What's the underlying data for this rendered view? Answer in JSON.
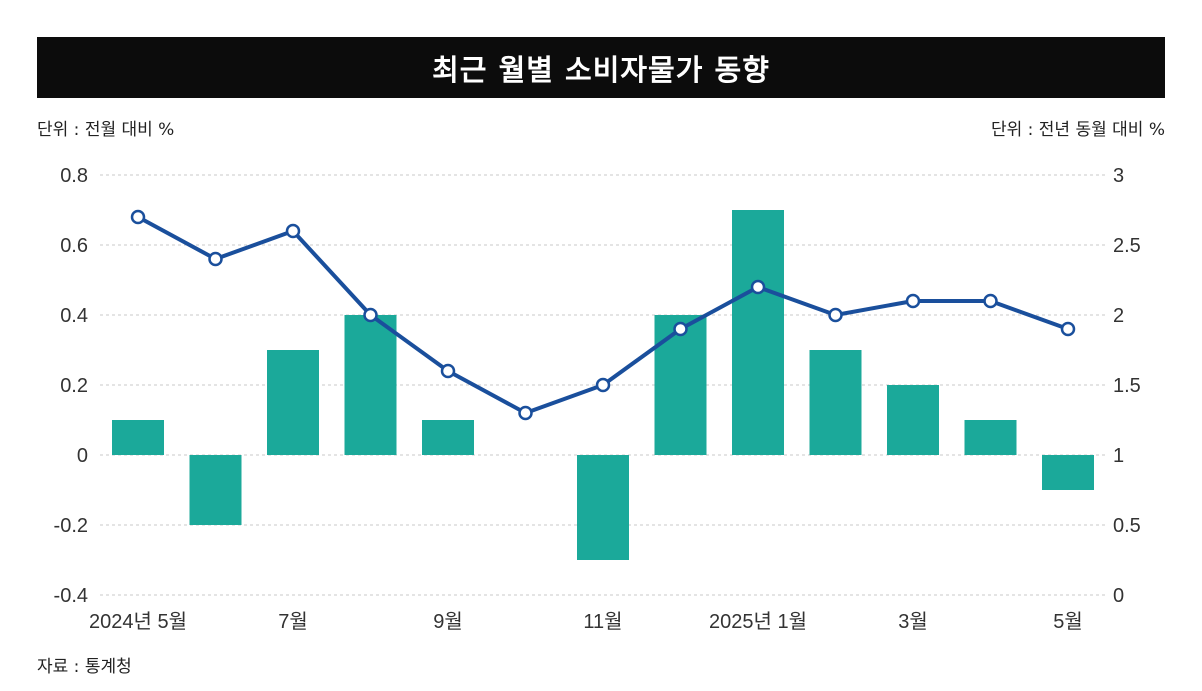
{
  "title": "최근 월별 소비자물가 동향",
  "left_unit": "단위 : 전월 대비 %",
  "right_unit": "단위 : 전년 동월 대비 %",
  "source": "자료 : 통계청",
  "colors": {
    "bar": "#1ba99a",
    "line": "#1a4f9c",
    "title_bg": "#0c0c0c"
  },
  "chart_data": {
    "type": "bar+line",
    "categories": [
      "2024-05",
      "2024-06",
      "2024-07",
      "2024-08",
      "2024-09",
      "2024-10",
      "2024-11",
      "2024-12",
      "2025-01",
      "2025-02",
      "2025-03",
      "2025-04",
      "2025-05"
    ],
    "x_tick_labels": [
      "2024년 5월",
      "",
      "7월",
      "",
      "9월",
      "",
      "11월",
      "",
      "2025년 1월",
      "",
      "3월",
      "",
      "5월"
    ],
    "series": [
      {
        "name": "전월 대비",
        "type": "bar",
        "axis": "left",
        "values": [
          0.1,
          -0.2,
          0.3,
          0.4,
          0.1,
          0.0,
          -0.3,
          0.4,
          0.7,
          0.3,
          0.2,
          0.1,
          -0.1
        ]
      },
      {
        "name": "전년 동월 대비",
        "type": "line",
        "axis": "right",
        "values": [
          2.7,
          2.4,
          2.6,
          2.0,
          1.6,
          1.3,
          1.5,
          1.9,
          2.2,
          2.0,
          2.1,
          2.1,
          1.9
        ]
      }
    ],
    "left_axis": {
      "ylim": [
        -0.4,
        0.8
      ],
      "ticks": [
        0.8,
        0.6,
        0.4,
        0.2,
        0,
        -0.2,
        -0.4
      ],
      "tick_labels": [
        "0.8",
        "0.6",
        "0.4",
        "0.2",
        "0",
        "-0.2",
        "-0.4"
      ]
    },
    "right_axis": {
      "ylim": [
        0,
        3
      ],
      "ticks": [
        3,
        2.5,
        2,
        1.5,
        1,
        0.5,
        0
      ],
      "tick_labels": [
        "3",
        "2.5",
        "2",
        "1.5",
        "1",
        "0.5",
        "0"
      ]
    },
    "grid": true
  }
}
